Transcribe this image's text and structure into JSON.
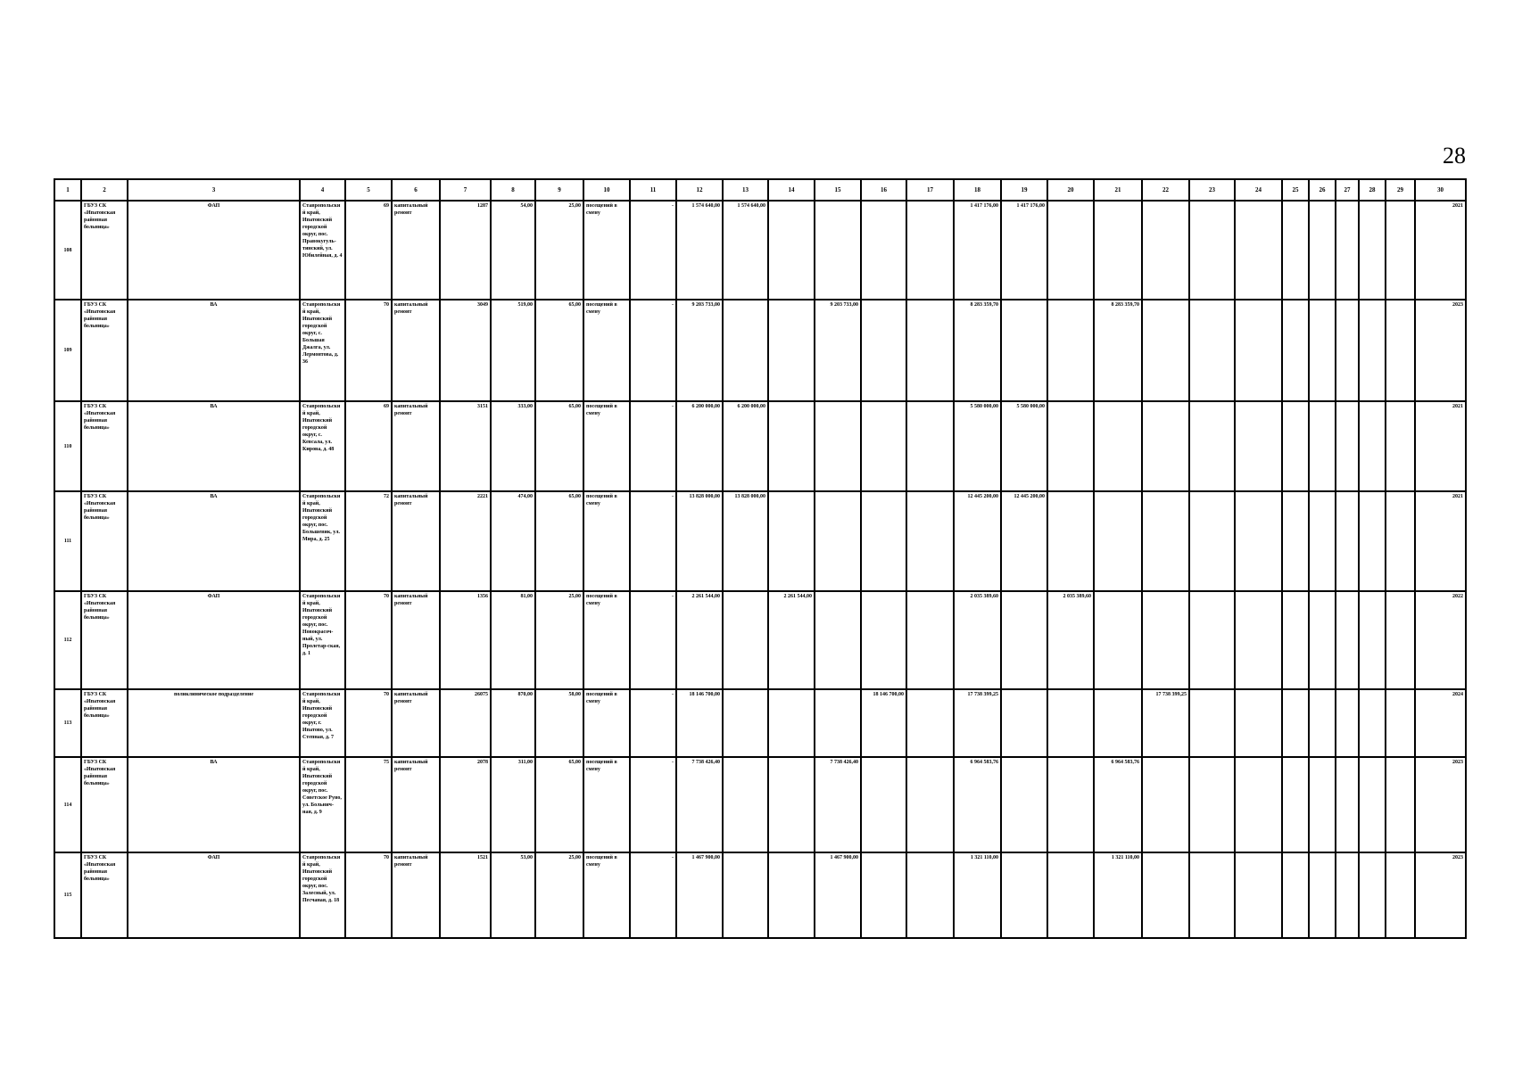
{
  "page_number": "28",
  "table": {
    "headers": [
      "1",
      "2",
      "3",
      "4",
      "5",
      "6",
      "7",
      "8",
      "9",
      "10",
      "11",
      "12",
      "13",
      "14",
      "15",
      "16",
      "17",
      "18",
      "19",
      "20",
      "21",
      "22",
      "23",
      "24",
      "25",
      "26",
      "27",
      "28",
      "29",
      "30"
    ],
    "rows": [
      [
        "108",
        "ГБУЗ СК «Ипатовская районная больница»",
        "ФАП",
        "Ставропольский край, Ипатовский городской округ, пос. Правокугуль-тинский, ул. Юбилейная, д. 4",
        "69",
        "капитальный ремонт",
        "1287",
        "54,00",
        "25,00",
        "посещений в смену",
        "-",
        "1 574 640,00",
        "1 574 640,00",
        "",
        "",
        "",
        "",
        "1 417 176,00",
        "1 417 176,00",
        "",
        "",
        "",
        "",
        "",
        "",
        "",
        "",
        "",
        "",
        "2021"
      ],
      [
        "109",
        "ГБУЗ СК «Ипатовская районная больница»",
        "ВА",
        "Ставропольский край, Ипатовский городской округ, с. Большая Джалга, ул. Лермонтова, д. 36",
        "70",
        "капитальный ремонт",
        "3049",
        "519,00",
        "65,00",
        "посещений в смену",
        "-",
        "9 203 733,00",
        "",
        "",
        "9 203 733,00",
        "",
        "",
        "8 283 359,70",
        "",
        "",
        "8 283 359,70",
        "",
        "",
        "",
        "",
        "",
        "",
        "",
        "",
        "2023"
      ],
      [
        "110",
        "ГБУЗ СК «Ипатовская районная больница»",
        "ВА",
        "Ставропольский край, Ипатовский городской округ, с. Кевсала, ул. Кирова, д. 48",
        "69",
        "капитальный ремонт",
        "3151",
        "333,00",
        "65,00",
        "посещений в смену",
        "-",
        "6 200 000,00",
        "6 200 000,00",
        "",
        "",
        "",
        "",
        "5 580 000,00",
        "5 580 000,00",
        "",
        "",
        "",
        "",
        "",
        "",
        "",
        "",
        "",
        "",
        "2021"
      ],
      [
        "111",
        "ГБУЗ СК «Ипатовская районная больница»",
        "ВА",
        "Ставропольский край, Ипатовский городской округ, пос. Большевик, ул. Мира, д. 25",
        "72",
        "капитальный ремонт",
        "2221",
        "474,00",
        "65,00",
        "посещений в смену",
        "-",
        "13 828 000,00",
        "13 828 000,00",
        "",
        "",
        "",
        "",
        "12 445 200,00",
        "12 445 200,00",
        "",
        "",
        "",
        "",
        "",
        "",
        "",
        "",
        "",
        "",
        "2021"
      ],
      [
        "112",
        "ГБУЗ СК «Ипатовская районная больница»",
        "ФАП",
        "Ставропольский край, Ипатовский городской округ, пос. Новокрасоч-ный, ул. Пролетар-ская, д. 1",
        "70",
        "капитальный ремонт",
        "1356",
        "81,00",
        "25,00",
        "посещений в смену",
        "-",
        "2 261 544,00",
        "",
        "2 261 544,00",
        "",
        "",
        "",
        "2 035 389,60",
        "",
        "2 035 389,60",
        "",
        "",
        "",
        "",
        "",
        "",
        "",
        "",
        "",
        "2022"
      ],
      [
        "113",
        "ГБУЗ СК «Ипатовская районная больница»",
        "поликлиническое подразделение",
        "Ставропольский край, Ипатовский городской округ, г. Ипатово, ул. Степная, д. 7",
        "70",
        "капитальный ремонт",
        "26075",
        "870,00",
        "58,00",
        "посещений в смену",
        "-",
        "18 146 700,00",
        "",
        "",
        "",
        "18 146 700,00",
        "",
        "17 738 399,25",
        "",
        "",
        "",
        "17 738 399,25",
        "",
        "",
        "",
        "",
        "",
        "",
        "",
        "2024"
      ],
      [
        "114",
        "ГБУЗ СК «Ипатовская районная больница»",
        "ВА",
        "Ставропольский край, Ипатовский городской округ, пос. Советское Руно, ул. Больнич-ная, д. 9",
        "75",
        "капитальный ремонт",
        "2078",
        "311,00",
        "65,00",
        "посещений в смену",
        "-",
        "7 738 426,40",
        "",
        "",
        "7 738 426,40",
        "",
        "",
        "6 964 583,76",
        "",
        "",
        "6 964 583,76",
        "",
        "",
        "",
        "",
        "",
        "",
        "",
        "",
        "2023"
      ],
      [
        "115",
        "ГБУЗ СК «Ипатовская районная больница»",
        "ФАП",
        "Ставропольский край, Ипатовский городской округ, пос. Залесный, ул. Песчаная, д. 18",
        "70",
        "капитальный ремонт",
        "1521",
        "53,00",
        "25,00",
        "посещений в смену",
        "-",
        "1 467 900,00",
        "",
        "",
        "1 467 900,00",
        "",
        "",
        "1 321 110,00",
        "",
        "",
        "1 321 110,00",
        "",
        "",
        "",
        "",
        "",
        "",
        "",
        "",
        "2023"
      ]
    ]
  }
}
